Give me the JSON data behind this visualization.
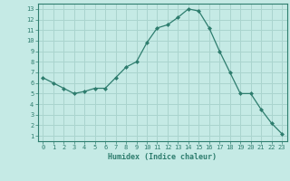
{
  "x": [
    0,
    1,
    2,
    3,
    4,
    5,
    6,
    7,
    8,
    9,
    10,
    11,
    12,
    13,
    14,
    15,
    16,
    17,
    18,
    19,
    20,
    21,
    22,
    23
  ],
  "y": [
    6.5,
    6.0,
    5.5,
    5.0,
    5.2,
    5.5,
    5.5,
    6.5,
    7.5,
    8.0,
    9.8,
    11.2,
    11.5,
    12.2,
    13.0,
    12.8,
    11.2,
    9.0,
    7.0,
    5.0,
    5.0,
    3.5,
    2.2,
    1.2
  ],
  "xlabel": "Humidex (Indice chaleur)",
  "xlim": [
    -0.5,
    23.5
  ],
  "ylim": [
    0.5,
    13.5
  ],
  "yticks": [
    1,
    2,
    3,
    4,
    5,
    6,
    7,
    8,
    9,
    10,
    11,
    12,
    13
  ],
  "xticks": [
    0,
    1,
    2,
    3,
    4,
    5,
    6,
    7,
    8,
    9,
    10,
    11,
    12,
    13,
    14,
    15,
    16,
    17,
    18,
    19,
    20,
    21,
    22,
    23
  ],
  "line_color": "#2e7d6e",
  "marker": "D",
  "marker_size": 2.0,
  "bg_color": "#c5eae5",
  "grid_color": "#aad4ce",
  "tick_color": "#2e7d6e",
  "label_color": "#2e7d6e",
  "font_family": "monospace",
  "tick_labelsize": 5.0,
  "xlabel_fontsize": 6.0
}
